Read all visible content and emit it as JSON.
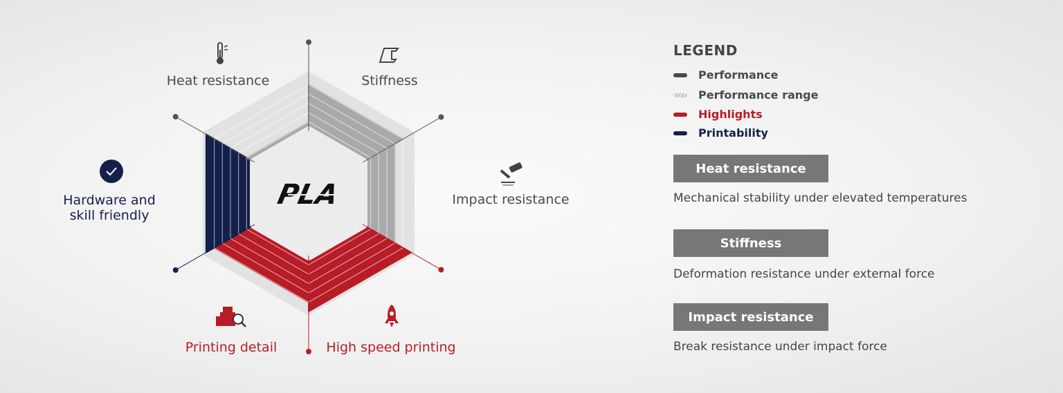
{
  "center_label": "PLA",
  "axes": [
    {
      "label": "Stiffness",
      "group": "performance",
      "level": 5,
      "icon": "i-beam-icon"
    },
    {
      "label": "Impact resistance",
      "group": "performance",
      "level": 4,
      "icon": "hammer-icon"
    },
    {
      "label": "High speed printing",
      "group": "highlights",
      "level": 6,
      "icon": "rocket-icon"
    },
    {
      "label": "Printing detail",
      "group": "highlights",
      "level": 5,
      "icon": "castle-magnifier-icon"
    },
    {
      "label": "Hardware and skill friendly",
      "group": "printability",
      "level": 6,
      "icon": "check-circle-icon"
    },
    {
      "label": "Heat resistance",
      "group": "performance",
      "level": 1,
      "icon": "thermometer-icon"
    }
  ],
  "scale_max": 6,
  "colors": {
    "performance": "#a9a9a9",
    "performance_range": "#e2e2e2",
    "highlights": "#b81c27",
    "printability": "#15204a",
    "axis": "#555555"
  },
  "legend": {
    "title": "LEGEND",
    "items": [
      {
        "label": "Performance",
        "color": "#4a4a4a"
      },
      {
        "label": "Performance range",
        "color": "#bbbbbb"
      },
      {
        "label": "Highlights",
        "color": "#b81c27"
      },
      {
        "label": "Printability",
        "color": "#15204a"
      }
    ]
  },
  "definitions": [
    {
      "title": "Heat resistance",
      "text": "Mechanical stability under elevated temperatures"
    },
    {
      "title": "Stiffness",
      "text": "Deformation resistance under external force"
    },
    {
      "title": "Impact resistance",
      "text": "Break resistance under impact force"
    }
  ]
}
